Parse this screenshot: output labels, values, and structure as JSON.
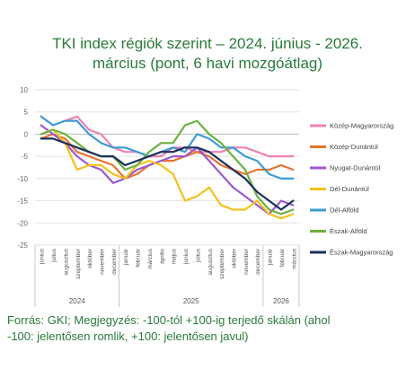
{
  "title": {
    "line1": "TKI index régiók szerint – 2024. június - 2026.",
    "line2": "március (pont, 6 havi mozgóátlag)"
  },
  "source": {
    "line1": "Forrás: GKI; Megjegyzés: -100-tól +100-ig terjedő skálán (ahol",
    "line2": "-100: jelentősen romlik, +100: jelentősen javul)"
  },
  "chart_data": {
    "type": "line",
    "x": [
      "június",
      "július",
      "augusztus",
      "szeptember",
      "október",
      "november",
      "december",
      "január",
      "február",
      "március",
      "április",
      "május",
      "június",
      "július",
      "augusztus",
      "szeptember",
      "október",
      "november",
      "december",
      "január",
      "február",
      "március"
    ],
    "year_groups": [
      {
        "label": "2024",
        "start": 0,
        "end": 6
      },
      {
        "label": "2025",
        "start": 7,
        "end": 18
      },
      {
        "label": "2026",
        "start": 19,
        "end": 21
      }
    ],
    "ylim": [
      -25,
      10
    ],
    "yticks": [
      10,
      5,
      0,
      -5,
      -10,
      -15,
      -20,
      -25
    ],
    "grid": true,
    "legend_position": "right",
    "series": [
      {
        "name": "Közép-Magyarország",
        "color": "#ee82b4",
        "values": [
          4,
          2,
          3,
          4,
          1,
          0,
          -3,
          -4,
          -4,
          -5,
          -5,
          -3,
          -3,
          -4,
          -4,
          -4,
          -3,
          -3,
          -4,
          -5,
          -5,
          -5
        ]
      },
      {
        "name": "Közép-Dunántúl",
        "color": "#e8722e",
        "values": [
          -1,
          0,
          -1,
          -4,
          -5,
          -6,
          -7,
          -10,
          -9,
          -7,
          -6,
          -6,
          -5,
          -4,
          -5,
          -7,
          -8,
          -9,
          -8,
          -8,
          -7,
          -8
        ]
      },
      {
        "name": "Nyugat-Dunántúl",
        "color": "#9b59d0",
        "values": [
          2,
          0,
          -2,
          -5,
          -7,
          -8,
          -11,
          -10,
          -8,
          -7,
          -6,
          -5,
          -5,
          -3,
          -6,
          -9,
          -12,
          -14,
          -16,
          -18,
          -15,
          -16
        ]
      },
      {
        "name": "Dél-Dunántúl",
        "color": "#f2c21a",
        "values": [
          0,
          1,
          -2,
          -8,
          -7,
          -7,
          -9,
          -10,
          -7,
          -6,
          -7,
          -9,
          -15,
          -14,
          -12,
          -16,
          -17,
          -17,
          -15,
          -18,
          -19,
          -18
        ]
      },
      {
        "name": "Dél-Alföld",
        "color": "#3e9ad6",
        "values": [
          4,
          2,
          3,
          3,
          0,
          -2,
          -3,
          -3,
          -4,
          -5,
          -4,
          -3,
          -4,
          0,
          -1,
          -3,
          -3,
          -5,
          -6,
          -9,
          -10,
          -10
        ]
      },
      {
        "name": "Észak-Alföld",
        "color": "#6cb042",
        "values": [
          0,
          1,
          0,
          -2,
          -4,
          -5,
          -5,
          -8,
          -7,
          -4,
          -2,
          -2,
          2,
          3,
          0,
          -2,
          -5,
          -8,
          -14,
          -17,
          -18,
          -17
        ]
      },
      {
        "name": "Észak-Magyarország",
        "color": "#1c2f5c",
        "values": [
          -1,
          -1,
          -2,
          -3,
          -4,
          -5,
          -5,
          -7,
          -6,
          -5,
          -4,
          -4,
          -3,
          -3,
          -4,
          -6,
          -8,
          -10,
          -13,
          -15,
          -17,
          -15
        ]
      }
    ]
  }
}
